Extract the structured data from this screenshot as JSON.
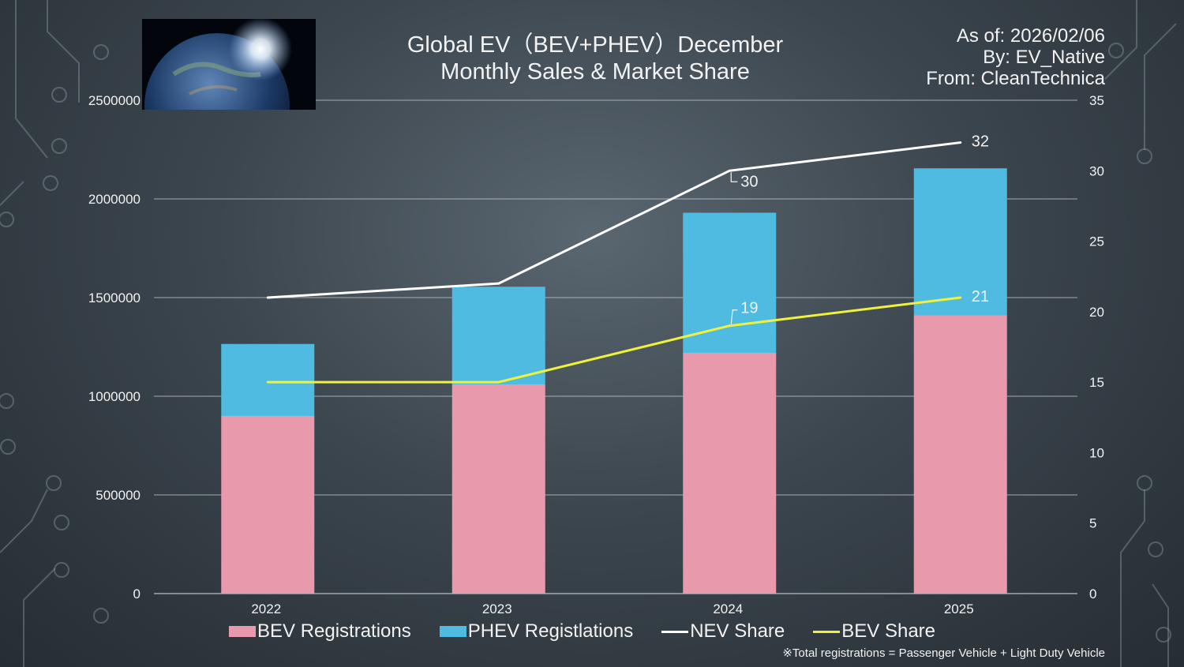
{
  "title_line1": "Global EV（BEV+PHEV）December",
  "title_line2": "Monthly Sales & Market Share",
  "as_of": "As of: 2026/02/06",
  "by": "By: EV_Native",
  "from": "From: CleanTechnica",
  "footnote": "※Total registrations = Passenger Vehicle + Light Duty Vehicle",
  "legend": {
    "bev": "BEV Registrations",
    "phev": "PHEV Registlations",
    "nev": "NEV Share",
    "bev_share": "BEV Share"
  },
  "colors": {
    "bev": "#e899ac",
    "phev": "#4fbbe0",
    "nev": "#ffffff",
    "bev_share": "#f0f23a",
    "grid": "#c9ced2",
    "text": "#f2f2f2"
  },
  "chart_data": {
    "type": "bar",
    "categories": [
      "2022",
      "2023",
      "2024",
      "2025"
    ],
    "series": [
      {
        "name": "BEV Registrations",
        "kind": "bar",
        "stack": "total",
        "values": [
          900000,
          1060000,
          1220000,
          1410000
        ]
      },
      {
        "name": "PHEV Registlations",
        "kind": "bar",
        "stack": "total",
        "values": [
          365000,
          495000,
          710000,
          745000
        ]
      },
      {
        "name": "NEV Share",
        "kind": "line",
        "axis": "right",
        "values": [
          21,
          22,
          30,
          32
        ],
        "labels": [
          "",
          "",
          "30",
          "32"
        ]
      },
      {
        "name": "BEV Share",
        "kind": "line",
        "axis": "right",
        "values": [
          15,
          15,
          19,
          21
        ],
        "labels": [
          "",
          "",
          "19",
          "21"
        ]
      }
    ],
    "y_left": {
      "min": 0,
      "max": 2500000,
      "ticks": [
        0,
        500000,
        1000000,
        1500000,
        2000000,
        2500000
      ]
    },
    "y_right": {
      "min": 0,
      "max": 35,
      "ticks": [
        0,
        5,
        10,
        15,
        20,
        25,
        30,
        35
      ]
    },
    "grid": true,
    "legend_position": "bottom"
  }
}
